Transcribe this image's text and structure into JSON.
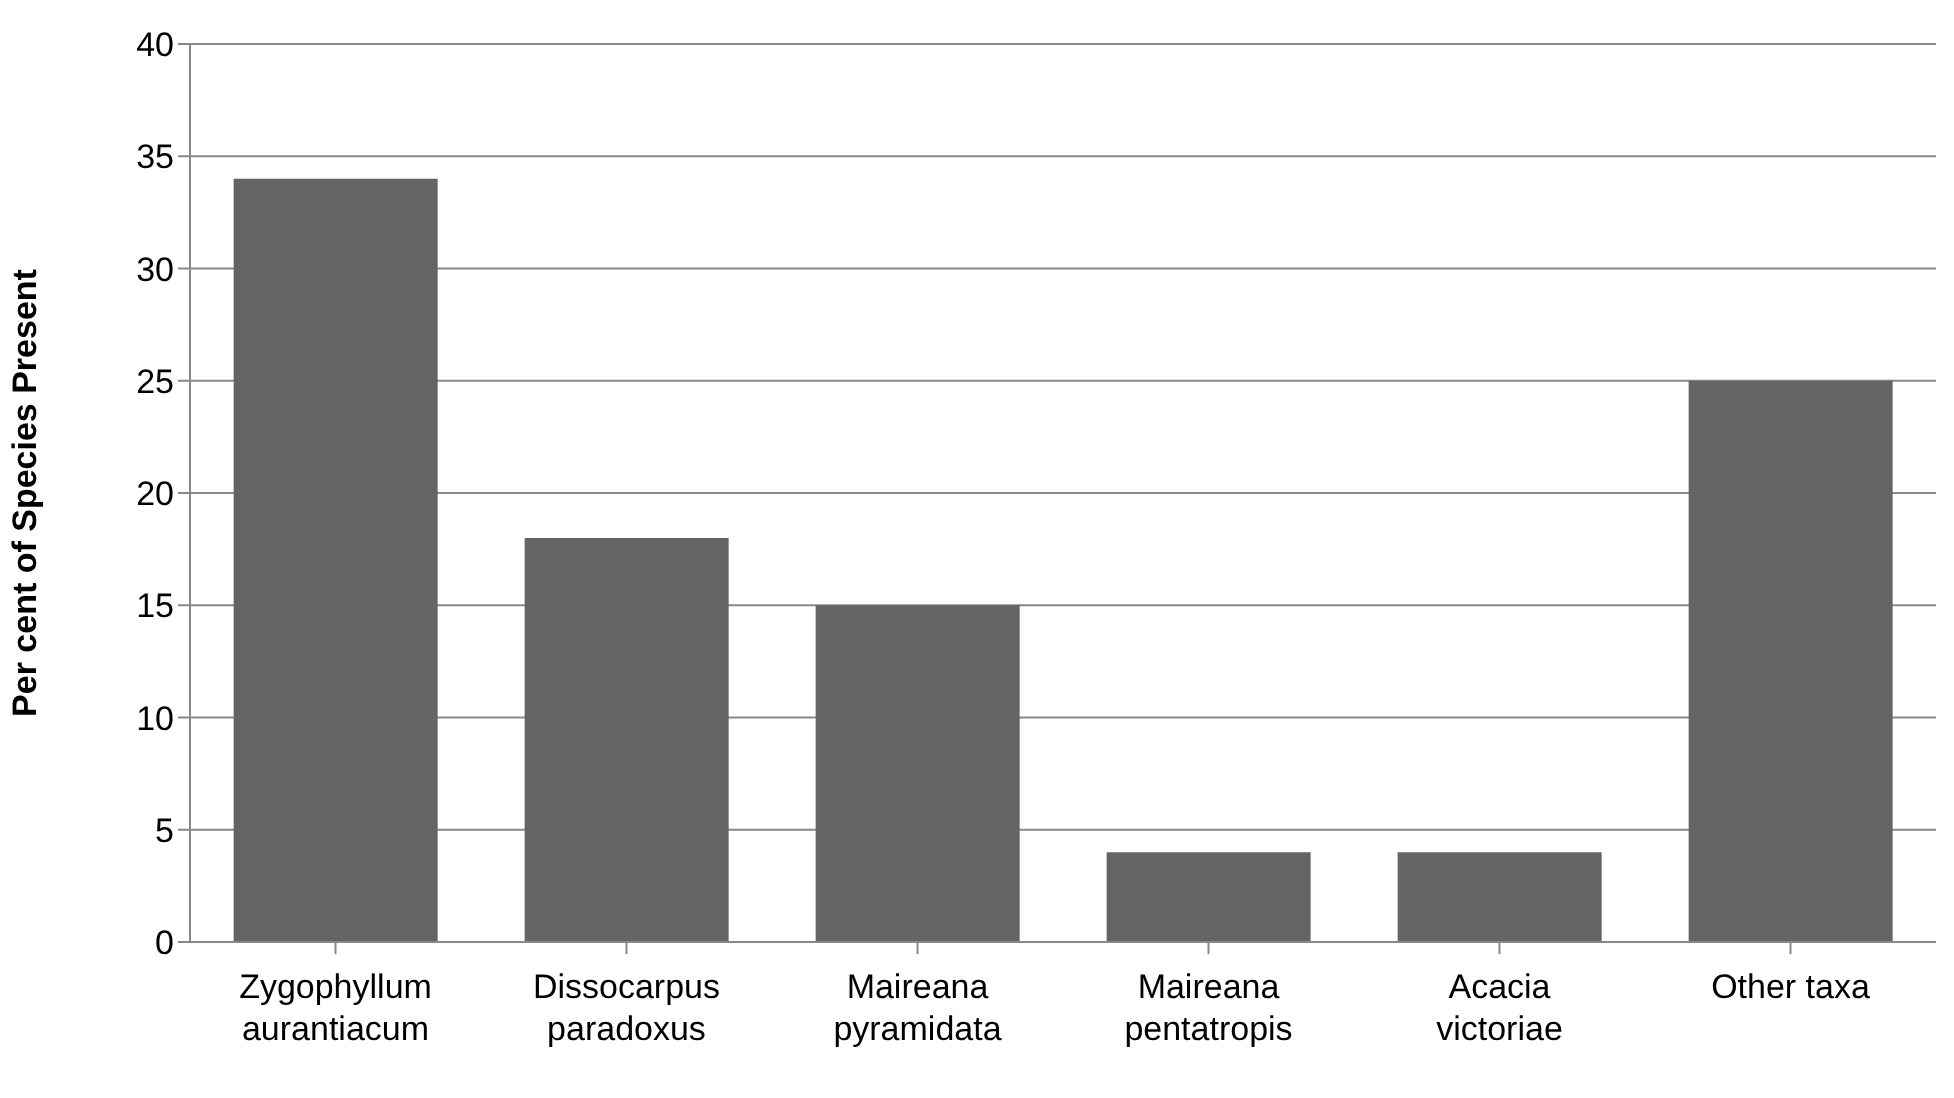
{
  "chart_data": {
    "type": "bar",
    "ylabel": "Per cent of Species Present",
    "categories": [
      "Zygophyllum aurantiacum",
      "Dissocarpus paradoxus",
      "Maireana pyramidata",
      "Maireana pentatropis",
      "Acacia victoriae",
      "Other taxa"
    ],
    "values": [
      34,
      18,
      15,
      4,
      4,
      25
    ],
    "color": "#646464",
    "ylim": [
      0,
      40
    ],
    "yticks": [
      0,
      5,
      10,
      15,
      20,
      25,
      30,
      35,
      40
    ],
    "grid": "y",
    "legend": false
  }
}
